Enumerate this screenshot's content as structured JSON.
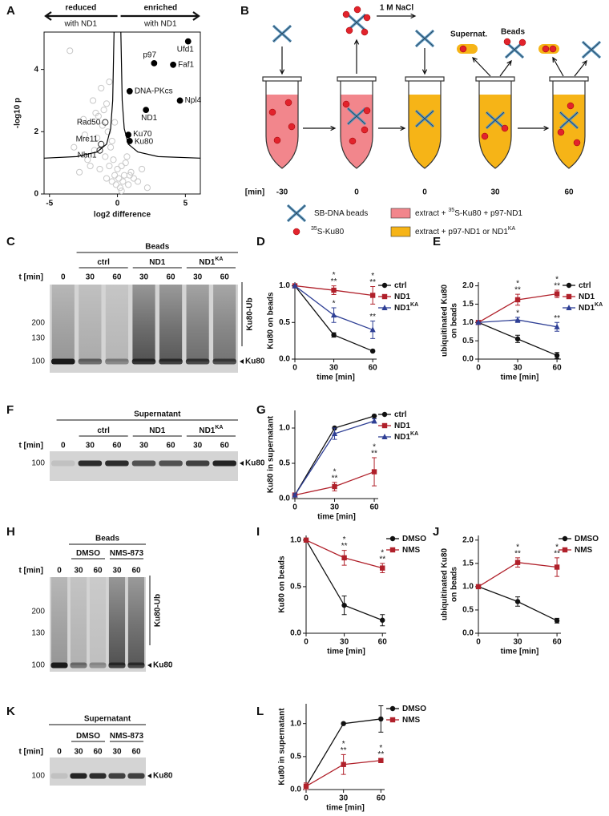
{
  "panel_labels": [
    "A",
    "B",
    "C",
    "D",
    "E",
    "F",
    "G",
    "H",
    "I",
    "J",
    "K",
    "L"
  ],
  "chart_data": [
    {
      "type": "scatter",
      "x_label": "log2 difference",
      "y_label": "-log10 p",
      "left_arrow": [
        "reduced",
        "with ND1"
      ],
      "right_arrow": [
        "enriched",
        "with ND1"
      ],
      "xlim": [
        -5.4,
        6.1
      ],
      "xticks": [
        -5,
        0,
        5
      ],
      "ylim": [
        0,
        5.2
      ],
      "yticks": [
        0,
        2,
        4
      ],
      "series": [
        {
          "color": "#c8c8c8",
          "marker": "open",
          "x": [
            -3.5,
            -2.8,
            -2.5,
            -2.2,
            -2.0,
            -1.8,
            -1.6,
            -1.5,
            -1.3,
            -1.2,
            -1.0,
            -0.9,
            -0.8,
            -0.7,
            -0.6,
            -0.5,
            -0.4,
            -0.3,
            -0.2,
            -0.1,
            0,
            0.1,
            0.2,
            0.3,
            0.4,
            0.5,
            0.6,
            0.8,
            1.0,
            1.2,
            1.5,
            1.8,
            2.2,
            -1.1,
            -0.8,
            -0.6,
            -2.4,
            -1.7,
            -0.4,
            -0.2,
            0.3,
            0.7,
            -3.2,
            -1.4,
            0.9
          ],
          "values": [
            4.6,
            0.7,
            2.4,
            1.1,
            0.9,
            3.0,
            2.6,
            1.8,
            0.8,
            3.4,
            2.7,
            1.2,
            0.5,
            2.0,
            0.9,
            1.5,
            0.4,
            1.1,
            0.6,
            0.3,
            0.8,
            0.5,
            0.2,
            0.9,
            0.4,
            0.6,
            1.0,
            0.3,
            0.7,
            0.5,
            0.4,
            0.8,
            0.2,
            2.2,
            2.9,
            3.6,
            1.9,
            1.4,
            1.7,
            2.3,
            0.1,
            1.2,
            1.5,
            2.5,
            0.6
          ]
        },
        {
          "color": "#000000",
          "marker": "filled",
          "x": [
            5.2,
            2.7,
            4.1,
            0.9,
            4.6,
            2.1,
            0.8,
            0.9
          ],
          "values": [
            4.9,
            4.2,
            4.15,
            3.3,
            3.0,
            2.7,
            1.9,
            1.7
          ],
          "labels": [
            "Ufd1",
            "p97",
            "Faf1",
            "DNA-PKcs",
            "Npl4",
            "ND1",
            "Ku70",
            "Ku80"
          ]
        },
        {
          "color": "#333333",
          "marker": "open",
          "x": [
            -0.9,
            -1.2,
            -1.3
          ],
          "values": [
            2.3,
            1.6,
            1.4
          ],
          "labels": [
            "Rad50",
            "Mre11",
            "Nbn1"
          ]
        },
        {
          "color": "#000000",
          "marker": "curve",
          "x": [
            -5.4,
            -3,
            -1.5,
            -0.8,
            -0.5,
            -0.35,
            -0.25,
            null,
            0.25,
            0.35,
            0.5,
            0.8,
            1.5,
            3,
            6.1
          ],
          "values": [
            1.15,
            1.2,
            1.35,
            1.6,
            2.1,
            3,
            5.2,
            null,
            5.2,
            3,
            2.1,
            1.6,
            1.35,
            1.2,
            1.15
          ]
        }
      ]
    },
    {
      "type": "line",
      "y_label": [
        "Ku80 on beads"
      ],
      "x_label": "time [min]",
      "xlim": [
        0,
        63
      ],
      "xticks": [
        0,
        30,
        60
      ],
      "ylim": [
        0,
        1.05
      ],
      "yticks": [
        {
          "value": 0,
          "label": "0.0"
        },
        {
          "value": 0.5,
          "label": "0.5"
        },
        {
          "value": 1,
          "label": "1.0"
        }
      ],
      "x": [
        0,
        30,
        60
      ],
      "series": [
        {
          "name": "ctrl",
          "color": "#111111",
          "marker": "circle",
          "values": [
            1,
            0.33,
            0.11
          ],
          "errors": [
            0,
            0.03,
            0.01
          ],
          "stars": [
            null,
            null,
            null
          ]
        },
        {
          "name": "ND1",
          "color": "#b0202a",
          "marker": "square",
          "values": [
            1,
            0.94,
            0.87
          ],
          "errors": [
            0.02,
            0.06,
            0.12
          ],
          "stars": [
            null,
            [
              "*",
              "**"
            ],
            [
              "*",
              "**"
            ]
          ]
        },
        {
          "name": "ND1",
          "name_sup": "KA",
          "color": "#2e3f95",
          "marker": "triangle",
          "values": [
            1,
            0.6,
            0.4
          ],
          "errors": [
            0,
            0.1,
            0.12
          ],
          "stars": [
            null,
            [
              "*"
            ],
            [
              "**"
            ]
          ]
        }
      ]
    },
    {
      "type": "line",
      "y_label": [
        "ubiquitinated Ku80",
        "on beads"
      ],
      "x_label": "time [min]",
      "xlim": [
        0,
        63
      ],
      "xticks": [
        0,
        30,
        60
      ],
      "ylim": [
        0,
        2.1
      ],
      "yticks": [
        {
          "value": 0,
          "label": "0.0"
        },
        {
          "value": 0.5,
          "label": "0.5"
        },
        {
          "value": 1,
          "label": "1.0"
        },
        {
          "value": 1.5,
          "label": "1.5"
        },
        {
          "value": 2,
          "label": "2.0"
        }
      ],
      "x": [
        0,
        30,
        60
      ],
      "series": [
        {
          "name": "ctrl",
          "color": "#111111",
          "marker": "circle",
          "values": [
            1,
            0.55,
            0.1
          ],
          "errors": [
            0,
            0.1,
            0.08
          ],
          "stars": [
            null,
            null,
            null
          ]
        },
        {
          "name": "ND1",
          "color": "#b0202a",
          "marker": "square",
          "values": [
            1,
            1.62,
            1.78
          ],
          "errors": [
            0,
            0.15,
            0.1
          ],
          "stars": [
            null,
            [
              "*",
              "**"
            ],
            [
              "*",
              "**"
            ]
          ]
        },
        {
          "name": "ND1",
          "name_sup": "KA",
          "color": "#2e3f95",
          "marker": "triangle",
          "values": [
            1,
            1.07,
            0.88
          ],
          "errors": [
            0,
            0.07,
            0.12
          ],
          "stars": [
            null,
            [
              "*"
            ],
            [
              "**"
            ]
          ]
        }
      ]
    },
    {
      "type": "line",
      "y_label": [
        "Ku80 in supernatant"
      ],
      "x_label": "time [min]",
      "xlim": [
        0,
        63
      ],
      "xticks": [
        0,
        30,
        60
      ],
      "ylim": [
        0,
        1.25
      ],
      "yticks": [
        {
          "value": 0,
          "label": "0.0"
        },
        {
          "value": 0.5,
          "label": "0.5"
        },
        {
          "value": 1,
          "label": "1.0"
        }
      ],
      "x": [
        0,
        30,
        60
      ],
      "series": [
        {
          "name": "ctrl",
          "color": "#111111",
          "marker": "circle",
          "values": [
            0.05,
            1.0,
            1.17
          ],
          "errors": [
            0,
            0.01,
            0.01
          ],
          "stars": [
            null,
            null,
            null
          ]
        },
        {
          "name": "ND1",
          "color": "#b0202a",
          "marker": "square",
          "values": [
            0.05,
            0.17,
            0.38
          ],
          "errors": [
            0.02,
            0.06,
            0.2
          ],
          "stars": [
            null,
            [
              "*",
              "**"
            ],
            [
              "*",
              "**"
            ]
          ]
        },
        {
          "name": "ND1",
          "name_sup": "KA",
          "color": "#2e3f95",
          "marker": "triangle",
          "values": [
            0.05,
            0.92,
            1.1
          ],
          "errors": [
            0.02,
            0.08,
            0.03
          ],
          "stars": [
            null,
            null,
            null
          ]
        }
      ]
    },
    {
      "type": "line",
      "y_label": [
        "Ku80 on beads"
      ],
      "x_label": "time [min]",
      "xlim": [
        0,
        63
      ],
      "xticks": [
        0,
        30,
        60
      ],
      "ylim": [
        0,
        1.05
      ],
      "yticks": [
        {
          "value": 0,
          "label": "0.0"
        },
        {
          "value": 0.5,
          "label": "0.5"
        },
        {
          "value": 1,
          "label": "1.0"
        }
      ],
      "x": [
        0,
        30,
        60
      ],
      "series": [
        {
          "name": "DMSO",
          "color": "#111111",
          "marker": "circle",
          "values": [
            1,
            0.3,
            0.14
          ],
          "errors": [
            0,
            0.1,
            0.06
          ],
          "stars": [
            null,
            null,
            null
          ]
        },
        {
          "name": "NMS",
          "color": "#b0202a",
          "marker": "square",
          "values": [
            1,
            0.81,
            0.7
          ],
          "errors": [
            0,
            0.08,
            0.05
          ],
          "stars": [
            null,
            [
              "*",
              "**"
            ],
            [
              "*",
              "**"
            ]
          ]
        }
      ]
    },
    {
      "type": "line",
      "y_label": [
        "ubiquitinated Ku80",
        "on beads"
      ],
      "x_label": "time [min]",
      "xlim": [
        0,
        63
      ],
      "xticks": [
        0,
        30,
        60
      ],
      "ylim": [
        0,
        2.1
      ],
      "yticks": [
        {
          "value": 0,
          "label": "0.0"
        },
        {
          "value": 0.5,
          "label": "0.5"
        },
        {
          "value": 1,
          "label": "1.0"
        },
        {
          "value": 1.5,
          "label": "1.5"
        },
        {
          "value": 2,
          "label": "2.0"
        }
      ],
      "x": [
        0,
        30,
        60
      ],
      "series": [
        {
          "name": "DMSO",
          "color": "#111111",
          "marker": "circle",
          "values": [
            1,
            0.68,
            0.27
          ],
          "errors": [
            0,
            0.1,
            0.05
          ],
          "stars": [
            null,
            null,
            null
          ]
        },
        {
          "name": "NMS",
          "color": "#b0202a",
          "marker": "square",
          "values": [
            1,
            1.52,
            1.42
          ],
          "errors": [
            0,
            0.1,
            0.2
          ],
          "stars": [
            null,
            [
              "*",
              "**"
            ],
            [
              "*",
              "**"
            ]
          ]
        }
      ]
    },
    {
      "type": "line",
      "y_label": [
        "Ku80 in supernatant"
      ],
      "x_label": "time [min]",
      "xlim": [
        0,
        63
      ],
      "xticks": [
        0,
        30,
        60
      ],
      "ylim": [
        0,
        1.3
      ],
      "yticks": [
        {
          "value": 0,
          "label": "0.0"
        },
        {
          "value": 0.5,
          "label": "0.5"
        },
        {
          "value": 1,
          "label": "1.0"
        }
      ],
      "x": [
        0,
        30,
        60
      ],
      "series": [
        {
          "name": "DMSO",
          "color": "#111111",
          "marker": "circle",
          "values": [
            0.05,
            1.0,
            1.07
          ],
          "errors": [
            0,
            0,
            0.2
          ],
          "stars": [
            null,
            null,
            null
          ]
        },
        {
          "name": "NMS",
          "color": "#b0202a",
          "marker": "square",
          "values": [
            0.05,
            0.38,
            0.44
          ],
          "errors": [
            0.05,
            0.15,
            0.03
          ],
          "stars": [
            null,
            [
              "*",
              "**"
            ],
            [
              "*",
              "**"
            ]
          ]
        }
      ]
    }
  ],
  "diagram": {
    "salt": "1 M NaCl",
    "supernatant": "Supernat.",
    "beads": "Beads",
    "time_label": "[min]",
    "times": [
      "-30",
      "0",
      "0",
      "30",
      "60"
    ],
    "legend": [
      {
        "label": "SB-DNA beads"
      },
      {
        "sup": "35",
        "label": "S-Ku80"
      },
      {
        "prefix": "extract + ",
        "sup": "35",
        "label": "S-Ku80 + p97-ND1"
      },
      {
        "label": "extract + p97-ND1 or ND1",
        "sup": "KA"
      }
    ]
  },
  "gels": [
    {
      "header": "Beads",
      "groups": [
        {
          "label": "ctrl"
        },
        {
          "label": "ND1"
        },
        {
          "label": "ND1",
          "sup": "KA"
        }
      ],
      "time_label": "t [min]",
      "lanes": [
        "0",
        "30",
        "60",
        "30",
        "60",
        "30",
        "60"
      ],
      "markers": [
        "200",
        "130",
        "100"
      ],
      "bracket_label": "Ku80-Ub",
      "band_label": "Ku80"
    },
    {
      "header": "Supernatant",
      "groups": [
        {
          "label": "ctrl"
        },
        {
          "label": "ND1"
        },
        {
          "label": "ND1",
          "sup": "KA"
        }
      ],
      "time_label": "t [min]",
      "lanes": [
        "0",
        "30",
        "60",
        "30",
        "60",
        "30",
        "60"
      ],
      "markers": [
        "100"
      ],
      "band_label": "Ku80"
    },
    {
      "header": "Beads",
      "groups": [
        {
          "label": "DMSO"
        },
        {
          "label": "NMS-873"
        }
      ],
      "time_label": "t [min]",
      "lanes": [
        "0",
        "30",
        "60",
        "30",
        "60"
      ],
      "markers": [
        "200",
        "130",
        "100"
      ],
      "bracket_label": "Ku80-Ub",
      "band_label": "Ku80"
    },
    {
      "header": "Supernatant",
      "groups": [
        {
          "label": "DMSO"
        },
        {
          "label": "NMS-873"
        }
      ],
      "time_label": "t [min]",
      "lanes": [
        "0",
        "30",
        "60",
        "30",
        "60"
      ],
      "markers": [
        "100"
      ],
      "band_label": "Ku80"
    }
  ]
}
